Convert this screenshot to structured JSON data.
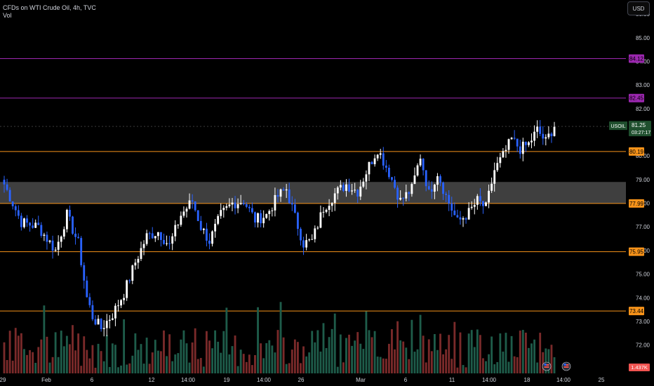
{
  "header": {
    "title": "CFDs on WTI Crude Oil, 4h, TVC",
    "sub": "Vol",
    "currency": "USD"
  },
  "colors": {
    "up": "#ffffff",
    "down": "#2962ff",
    "vol_up": "#1e5c4a",
    "vol_down": "#7a2a2a",
    "orange": "#f7931a",
    "purple": "#9c27b0",
    "zone": "#4a4a4a",
    "ticker_bg": "#1f4f2e"
  },
  "chart_data": {
    "type": "candlestick",
    "ylim": [
      70.8,
      86.6
    ],
    "y_ticks": [
      "86.00",
      "85.00",
      "84.00",
      "83.00",
      "82.00",
      "81.00",
      "80.00",
      "79.00",
      "78.00",
      "77.00",
      "76.00",
      "75.00",
      "74.00",
      "73.00",
      "72.00",
      "71.00"
    ],
    "x_ticks": [
      "29",
      "Feb",
      "6",
      "12",
      "14:00",
      "19",
      "14:00",
      "26",
      "Mar",
      "6",
      "11",
      "14:00",
      "18",
      "14:00",
      "25"
    ],
    "levels": [
      {
        "value": 84.12,
        "label": "84.12",
        "color": "purple"
      },
      {
        "value": 82.45,
        "label": "82.45",
        "color": "purple"
      },
      {
        "value": 80.19,
        "label": "80.19",
        "color": "orange"
      },
      {
        "value": 77.99,
        "label": "77.99",
        "color": "orange"
      },
      {
        "value": 75.95,
        "label": "75.95",
        "color": "orange"
      },
      {
        "value": 73.44,
        "label": "73.44",
        "color": "orange"
      }
    ],
    "zone": {
      "from": 77.99,
      "to": 78.9
    },
    "last_price": {
      "symbol": "USOIL",
      "price": "81.25",
      "countdown": "03:27:17",
      "value": 81.25
    },
    "volume_last": "1.437K",
    "close_path": [
      [
        0,
        78.8
      ],
      [
        6,
        77.2
      ],
      [
        12,
        77.0
      ],
      [
        18,
        76.0
      ],
      [
        22,
        77.5
      ],
      [
        26,
        76.3
      ],
      [
        29,
        74.0
      ],
      [
        31,
        73.2
      ],
      [
        34,
        72.7
      ],
      [
        38,
        73.3
      ],
      [
        42,
        74.2
      ],
      [
        46,
        75.5
      ],
      [
        50,
        76.6
      ],
      [
        54,
        76.8
      ],
      [
        58,
        76.2
      ],
      [
        62,
        77.5
      ],
      [
        66,
        78.1
      ],
      [
        69,
        77.0
      ],
      [
        72,
        76.4
      ],
      [
        76,
        77.5
      ],
      [
        80,
        78.0
      ],
      [
        84,
        78.1
      ],
      [
        88,
        77.3
      ],
      [
        92,
        77.5
      ],
      [
        96,
        78.3
      ],
      [
        99,
        78.6
      ],
      [
        102,
        77.4
      ],
      [
        105,
        76.3
      ],
      [
        108,
        76.4
      ],
      [
        112,
        77.8
      ],
      [
        116,
        78.4
      ],
      [
        120,
        78.8
      ],
      [
        124,
        78.5
      ],
      [
        128,
        79.6
      ],
      [
        131,
        80.3
      ],
      [
        135,
        79.3
      ],
      [
        139,
        78.1
      ],
      [
        143,
        78.6
      ],
      [
        146,
        80.0
      ],
      [
        149,
        78.4
      ],
      [
        152,
        79.3
      ],
      [
        155,
        78.3
      ],
      [
        159,
        77.2
      ],
      [
        163,
        77.6
      ],
      [
        166,
        78.1
      ],
      [
        169,
        77.8
      ],
      [
        172,
        79.4
      ],
      [
        175,
        80.0
      ],
      [
        178,
        80.7
      ],
      [
        181,
        80.3
      ],
      [
        184,
        80.5
      ],
      [
        187,
        81.1
      ],
      [
        190,
        80.6
      ],
      [
        193,
        81.3
      ]
    ]
  },
  "events": {
    "icon": "flag-icon"
  }
}
